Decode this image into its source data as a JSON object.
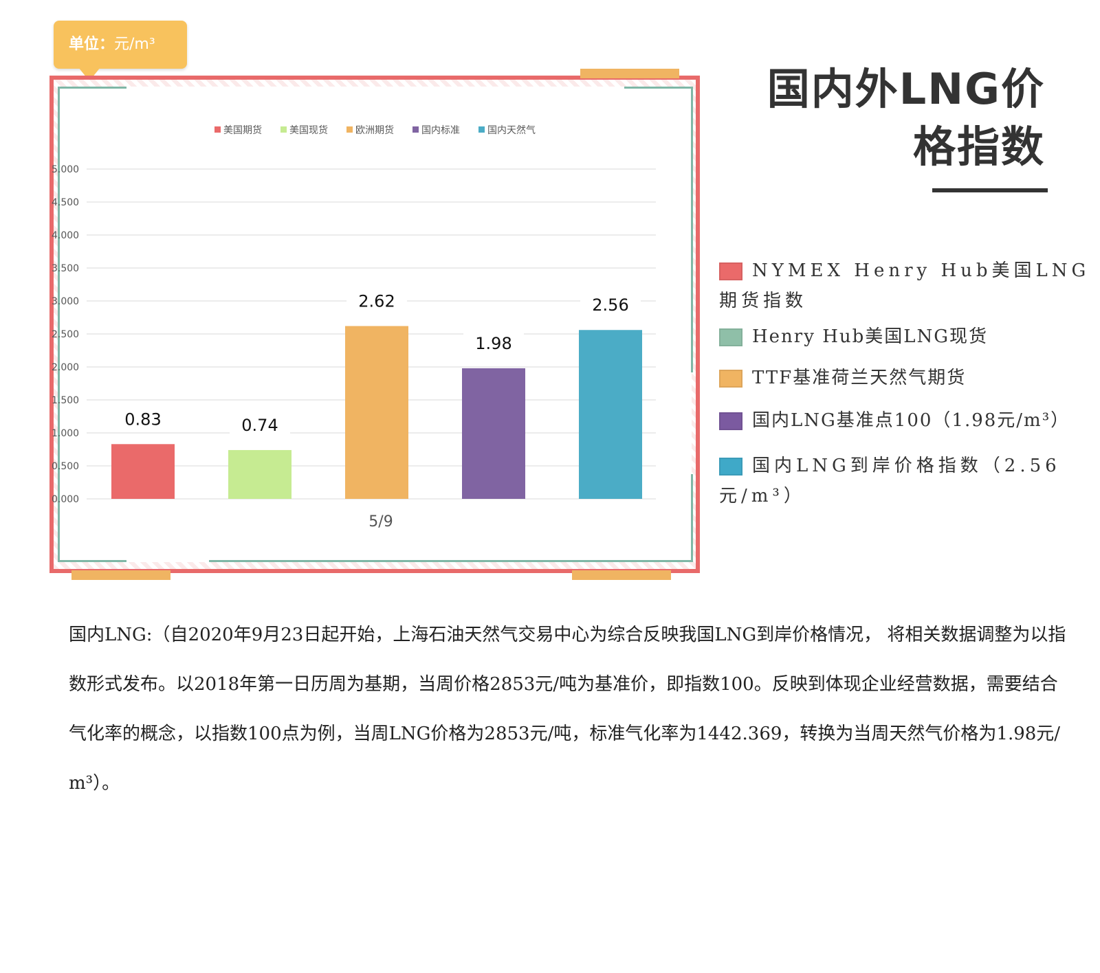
{
  "unit_label": "单位：",
  "unit_value": "元/m³",
  "title_line1": "国内外LNG价",
  "title_line2": "格指数",
  "chart_data": {
    "type": "bar",
    "categories": [
      "5/9"
    ],
    "series": [
      {
        "name": "美国期货",
        "values": [
          0.83
        ],
        "label": "0.83",
        "color": "#ea6a6a"
      },
      {
        "name": "美国现货",
        "values": [
          0.74
        ],
        "label": "0.74",
        "color": "#c6eb92"
      },
      {
        "name": "欧洲期货",
        "values": [
          2.62
        ],
        "label": "2.62",
        "color": "#f0b462"
      },
      {
        "name": "国内标准",
        "values": [
          1.98
        ],
        "label": "1.98",
        "color": "#8064a2"
      },
      {
        "name": "国内天然气",
        "values": [
          2.56
        ],
        "label": "2.56",
        "color": "#4bacc6"
      }
    ],
    "ylim": [
      0,
      5
    ],
    "yticks": [
      "0.000",
      "0.500",
      "1.000",
      "1.500",
      "2.000",
      "2.500",
      "3.000",
      "3.500",
      "4.000",
      "4.500",
      "5.000"
    ],
    "legend_position": "top",
    "grid": true
  },
  "right_legend": [
    {
      "text": "NYMEX Henry Hub美国LNG期货指数",
      "color": "#ea6a6a"
    },
    {
      "text": "Henry Hub美国LNG现货",
      "color": "#8fbfa8"
    },
    {
      "text": "TTF基准荷兰天然气期货",
      "color": "#f0b462"
    },
    {
      "text": "国内LNG基准点100（1.98元/m³）",
      "color": "#7b5aa0"
    },
    {
      "text": "国内LNG到岸价格指数（2.56元/m³）",
      "color": "#3fa9c8"
    }
  ],
  "paragraph": "国内LNG:（自2020年9月23日起开始，上海石油天然气交易中心为综合反映我国LNG到岸价格情况， 将相关数据调整为以指数形式发布。以2018年第一日历周为基期，当周价格2853元/吨为基准价，即指数100。反映到体现企业经营数据，需要结合气化率的概念，以指数100点为例，当周LNG价格为2853元/吨，标准气化率为1442.369，转换为当周天然气价格为1.98元/ m³）。"
}
